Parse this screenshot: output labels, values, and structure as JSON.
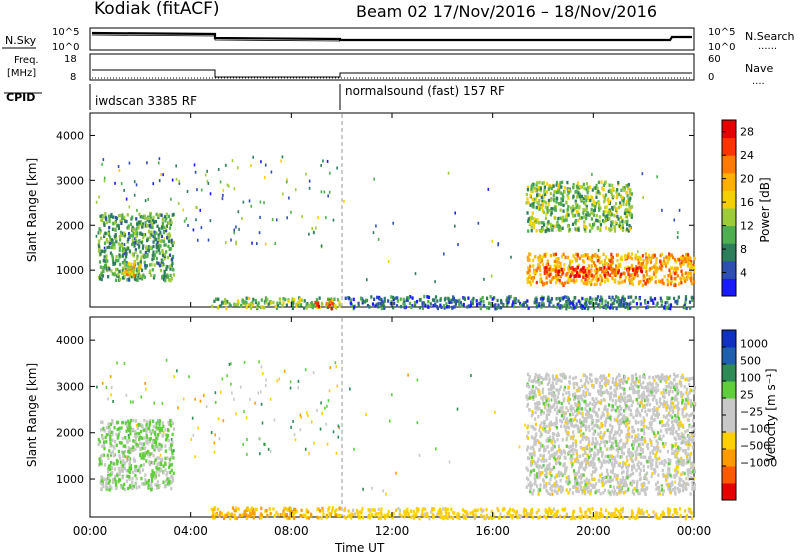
{
  "header": {
    "station": "Kodiak (fitACF)",
    "beam_dates": "Beam 02  17/Nov/2016 – 18/Nov/2016"
  },
  "top_panels": {
    "nsky": {
      "label": "N.Sky",
      "left_ticks": [
        "10^5",
        "10^0"
      ],
      "right_ticks": [
        "10^5",
        "10^0"
      ],
      "right_label": "N.Search",
      "right_legend": "......"
    },
    "freq": {
      "label_line1": "Freq.",
      "label_line2": "[MHz]",
      "left_ticks": [
        "18",
        "8"
      ],
      "right_ticks": [
        "60",
        "0"
      ],
      "right_label": "Nave",
      "right_legend": "...."
    },
    "cpid": {
      "label": "CPID",
      "segments": [
        "iwdscan 3385 RF",
        "normalsound (fast) 157 RF"
      ]
    }
  },
  "colors": {
    "power": [
      "#1a1aff",
      "#2f4fb0",
      "#2e7d5b",
      "#4fae4f",
      "#9ecb3c",
      "#f5d000",
      "#ffb000",
      "#ff7a00",
      "#ff3300",
      "#e60000"
    ],
    "velocity": [
      "#e60000",
      "#ff5a00",
      "#ff9a00",
      "#ffd000",
      "#c8c8c8",
      "#c8c8c8",
      "#5ecf3a",
      "#2e8b57",
      "#1f5fae",
      "#1030c0"
    ]
  },
  "chart_data": [
    {
      "type": "heatmap",
      "name": "Power",
      "ylabel": "Slant Range [km]",
      "yticks": [
        "4000",
        "3000",
        "2000",
        "1000"
      ],
      "ylim": [
        180,
        4500
      ],
      "xlim": [
        0,
        24
      ],
      "xticks_hours": [
        0,
        4,
        8,
        12,
        16,
        20,
        24
      ],
      "colorbar": {
        "label": "Power [dB]",
        "ticks": [
          "28",
          "24",
          "20",
          "16",
          "12",
          "8",
          "4"
        ],
        "range": [
          0,
          30
        ]
      },
      "regions": [
        {
          "t0": 0.3,
          "t1": 3.3,
          "r0": 800,
          "r1": 2300,
          "level": 10
        },
        {
          "t0": 1.3,
          "t1": 2.0,
          "r0": 900,
          "r1": 1200,
          "level": 18
        },
        {
          "t0": 4.8,
          "t1": 9.9,
          "r0": 180,
          "r1": 420,
          "level": 12
        },
        {
          "t0": 8.9,
          "t1": 9.6,
          "r0": 180,
          "r1": 350,
          "level": 26
        },
        {
          "t0": 10.0,
          "t1": 23.9,
          "r0": 180,
          "r1": 450,
          "level": 6
        },
        {
          "t0": 17.3,
          "t1": 24.0,
          "r0": 700,
          "r1": 1400,
          "level": 20
        },
        {
          "t0": 18.0,
          "t1": 22.0,
          "r0": 900,
          "r1": 1100,
          "level": 26
        },
        {
          "t0": 17.3,
          "t1": 21.5,
          "r0": 1900,
          "r1": 3000,
          "level": 12
        }
      ]
    },
    {
      "type": "heatmap",
      "name": "Velocity",
      "ylabel": "Slant Range [km]",
      "yticks": [
        "4000",
        "3000",
        "2000",
        "1000"
      ],
      "ylim": [
        180,
        4500
      ],
      "xlim": [
        0,
        24
      ],
      "xticks": [
        "00:00",
        "04:00",
        "08:00",
        "12:00",
        "16:00",
        "20:00",
        "00:00"
      ],
      "xlabel": "Time UT",
      "colorbar": {
        "label": "Velocity [m s⁻¹]",
        "ticks": [
          "1000",
          "500",
          "100",
          "25",
          "−25",
          "−100",
          "−500",
          "−1000"
        ]
      },
      "regions": [
        {
          "t0": 0.3,
          "t1": 3.3,
          "r0": 800,
          "r1": 2300,
          "level": 25
        },
        {
          "t0": 4.8,
          "t1": 9.9,
          "r0": 180,
          "r1": 420,
          "level": -100
        },
        {
          "t0": 10.0,
          "t1": 23.9,
          "r0": 180,
          "r1": 400,
          "level": -50
        },
        {
          "t0": 17.3,
          "t1": 24.0,
          "r0": 700,
          "r1": 3300,
          "level": 0
        }
      ]
    }
  ]
}
